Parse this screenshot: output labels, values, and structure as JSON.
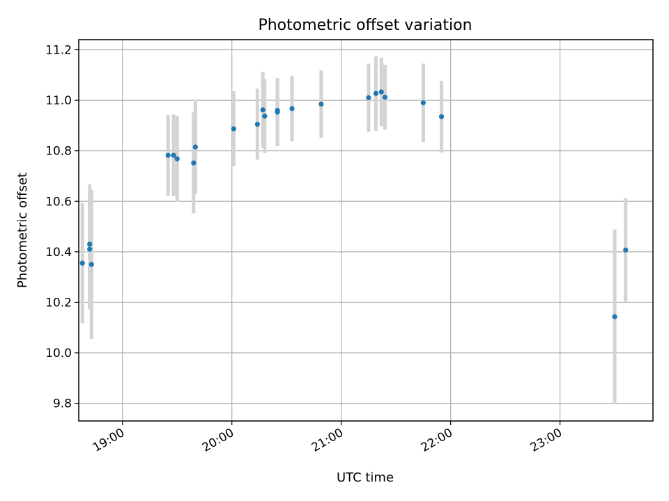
{
  "chart_data": {
    "type": "scatter",
    "title": "Photometric offset variation",
    "xlabel": "UTC time",
    "ylabel": "Photometric offset",
    "x_unit": "UTC time (HH:MM)",
    "xlim": [
      "18:36",
      "23:51"
    ],
    "ylim": [
      9.73,
      11.24
    ],
    "x_ticks": [
      "19:00",
      "20:00",
      "21:00",
      "22:00",
      "23:00"
    ],
    "y_ticks": [
      9.8,
      10.0,
      10.2,
      10.4,
      10.6,
      10.8,
      11.0,
      11.2
    ],
    "y_tick_labels": [
      "9.8",
      "10.0",
      "10.2",
      "10.4",
      "10.6",
      "10.8",
      "11.0",
      "11.2"
    ],
    "grid": true,
    "marker_color": "#1f77b4",
    "errorbar_color": "#d3d3d3",
    "points": [
      {
        "time": "18:38",
        "y": 10.355,
        "err": 0.237
      },
      {
        "time": "18:42",
        "y": 10.43,
        "err": 0.237
      },
      {
        "time": "18:42",
        "y": 10.41,
        "err": 0.237
      },
      {
        "time": "18:43",
        "y": 10.35,
        "err": 0.295
      },
      {
        "time": "19:25",
        "y": 10.782,
        "err": 0.16
      },
      {
        "time": "19:28",
        "y": 10.782,
        "err": 0.162
      },
      {
        "time": "19:30",
        "y": 10.768,
        "err": 0.17
      },
      {
        "time": "19:39",
        "y": 10.752,
        "err": 0.2
      },
      {
        "time": "19:40",
        "y": 10.815,
        "err": 0.186
      },
      {
        "time": "20:01",
        "y": 10.887,
        "err": 0.149
      },
      {
        "time": "20:14",
        "y": 10.905,
        "err": 0.141
      },
      {
        "time": "20:17",
        "y": 10.962,
        "err": 0.15
      },
      {
        "time": "20:18",
        "y": 10.937,
        "err": 0.146
      },
      {
        "time": "20:25",
        "y": 10.96,
        "err": 0.128
      },
      {
        "time": "20:25",
        "y": 10.953,
        "err": 0.135
      },
      {
        "time": "20:33",
        "y": 10.967,
        "err": 0.13
      },
      {
        "time": "20:49",
        "y": 10.985,
        "err": 0.133
      },
      {
        "time": "21:15",
        "y": 11.01,
        "err": 0.135
      },
      {
        "time": "21:19",
        "y": 11.027,
        "err": 0.148
      },
      {
        "time": "21:22",
        "y": 11.033,
        "err": 0.136
      },
      {
        "time": "21:24",
        "y": 11.012,
        "err": 0.128
      },
      {
        "time": "21:45",
        "y": 10.99,
        "err": 0.155
      },
      {
        "time": "21:55",
        "y": 10.935,
        "err": 0.142
      },
      {
        "time": "23:30",
        "y": 10.143,
        "err": 0.345
      },
      {
        "time": "23:36",
        "y": 10.407,
        "err": 0.205
      }
    ]
  }
}
